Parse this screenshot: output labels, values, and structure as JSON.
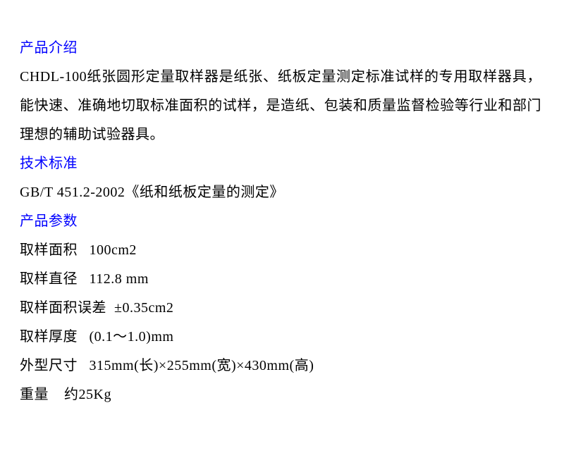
{
  "sections": {
    "intro_heading": "产品介绍",
    "intro_body": "CHDL-100纸张圆形定量取样器是纸张、纸板定量测定标准试样的专用取样器具，能快速、准确地切取标准面积的试样，是造纸、包装和质量监督检验等行业和部门理想的辅助试验器具。",
    "standard_heading": "技术标准",
    "standard_body": "GB/T 451.2-2002《纸和纸板定量的测定》",
    "params_heading": "产品参数",
    "params": [
      "取样面积   100cm2",
      "取样直径   112.8 mm",
      "取样面积误差  ±0.35cm2",
      "取样厚度   (0.1～1.0)mm",
      "外型尺寸   315mm(长)×255mm(宽)×430mm(高)",
      "重量    约25Kg"
    ]
  },
  "style": {
    "heading_color": "#0000ff",
    "body_color": "#000000",
    "background_color": "#ffffff",
    "font_family": "SimSun",
    "font_size_pt": 15,
    "line_height": 2.05
  }
}
